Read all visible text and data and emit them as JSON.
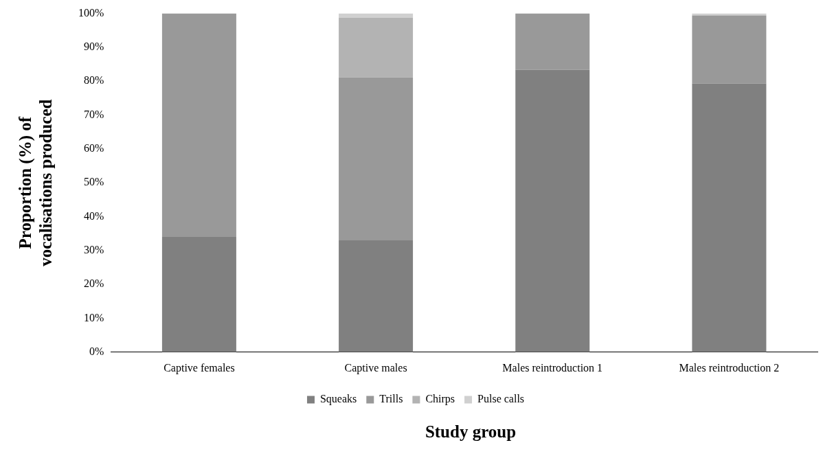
{
  "chart_data": {
    "type": "bar",
    "stacked": true,
    "xlabel": "Study group",
    "ylabel": "Proportion (%) of vocalisations produced",
    "categories": [
      "Captive females",
      "Captive males",
      "Males reintroduction 1",
      "Males reintroduction 2"
    ],
    "series": [
      {
        "name": "Squeaks",
        "color": "#808080",
        "values": [
          34,
          33,
          83.4,
          79.3
        ]
      },
      {
        "name": "Trills",
        "color": "#999999",
        "values": [
          66,
          48.1,
          16.6,
          20.1
        ]
      },
      {
        "name": "Chirps",
        "color": "#b3b3b3",
        "values": [
          0,
          17.6,
          0,
          0
        ]
      },
      {
        "name": "Pulse calls",
        "color": "#d0d0d0",
        "values": [
          0,
          1.3,
          0,
          0.6
        ]
      }
    ],
    "ylim": [
      0,
      100
    ],
    "yticks": [
      {
        "value": 0,
        "label": "0%"
      },
      {
        "value": 10,
        "label": "10%"
      },
      {
        "value": 20,
        "label": "20%"
      },
      {
        "value": 30,
        "label": "30%"
      },
      {
        "value": 40,
        "label": "40%"
      },
      {
        "value": 50,
        "label": "50%"
      },
      {
        "value": 60,
        "label": "60%"
      },
      {
        "value": 70,
        "label": "70%"
      },
      {
        "value": 80,
        "label": "80%"
      },
      {
        "value": 90,
        "label": "90%"
      },
      {
        "value": 100,
        "label": "100%"
      }
    ],
    "grid": false,
    "legend": "bottom"
  }
}
